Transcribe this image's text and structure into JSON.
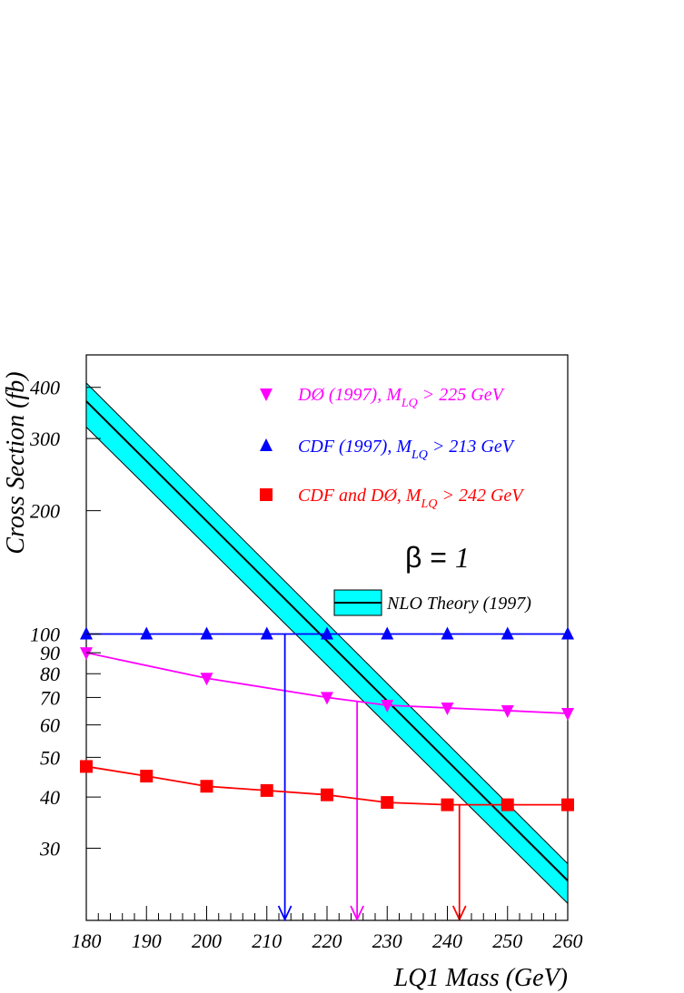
{
  "chart_data": {
    "type": "line",
    "xlabel": "LQ1 Mass (GeV)",
    "ylabel": "Cross Section (fb)",
    "xlim": [
      180,
      260
    ],
    "ylim": [
      20,
      480
    ],
    "yscale": "log",
    "x_ticks": [
      180,
      190,
      200,
      210,
      220,
      230,
      240,
      250,
      260
    ],
    "y_ticks": [
      30,
      40,
      50,
      60,
      70,
      80,
      90,
      100,
      200,
      300,
      400
    ],
    "x": [
      180,
      190,
      200,
      210,
      220,
      230,
      240,
      250,
      260
    ],
    "series": [
      {
        "name": "DØ (1997), M_LQ > 225 GeV",
        "label_main": "DØ (1997), M",
        "label_sub": "LQ",
        "label_rest": " > 225 GeV",
        "color": "#ff00ff",
        "marker": "triangle-down",
        "values": [
          90,
          null,
          78,
          null,
          70,
          67,
          66,
          65,
          64
        ],
        "limit": 225
      },
      {
        "name": "CDF (1997), M_LQ > 213 GeV",
        "label_main": "CDF (1997), M",
        "label_sub": "LQ",
        "label_rest": " > 213 GeV",
        "color": "#0000ff",
        "marker": "triangle-up",
        "values": [
          100,
          100,
          100,
          100,
          100,
          100,
          100,
          100,
          100
        ],
        "limit": 213
      },
      {
        "name": "CDF and DØ, M_LQ > 242 GeV",
        "label_main": "CDF and DØ, M",
        "label_sub": "LQ",
        "label_rest": " > 242 GeV",
        "color": "#ff0000",
        "marker": "square",
        "values": [
          47.5,
          45,
          42.5,
          41.5,
          40.5,
          38.8,
          38.3,
          38.3,
          38.3
        ],
        "limit": 242
      }
    ],
    "theory": {
      "name": "NLO Theory (1997)",
      "x": [
        180,
        260
      ],
      "central": [
        370,
        25
      ],
      "upper": [
        410,
        27.5
      ],
      "lower": [
        320,
        22
      ],
      "band_color": "#00ffff"
    },
    "annotation": {
      "beta_symbol": "β",
      "beta_eq": " = ",
      "beta_value": "1"
    },
    "legend_position": "top-right",
    "grid": false
  }
}
